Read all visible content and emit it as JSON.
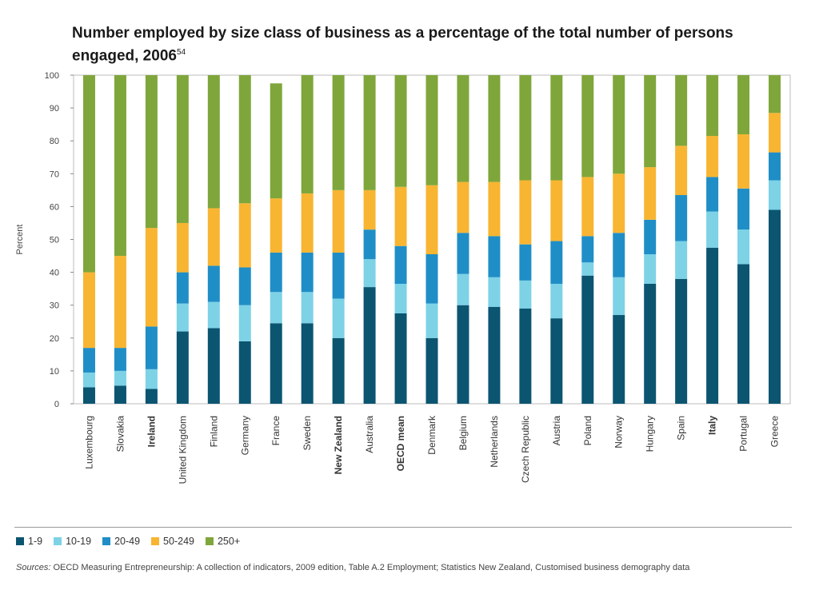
{
  "title": "Number employed by size class of business as a percentage of the total number of persons engaged, 2006",
  "title_footnote": "54",
  "sources_label": "Sources:",
  "sources_text": "OECD Measuring Entrepreneurship: A collection of indicators, 2009 edition, Table A.2 Employment; Statistics New Zealand, Customised business demography data",
  "colors": {
    "1-9": "#0b5571",
    "10-19": "#7dd2e6",
    "20-49": "#1f8ec6",
    "50-249": "#f8b532",
    "250+": "#7fa63a"
  },
  "chart_data": {
    "type": "bar",
    "stacked": true,
    "ylabel": "Percent",
    "ylim": [
      0,
      100
    ],
    "yticks": [
      0,
      10,
      20,
      30,
      40,
      50,
      60,
      70,
      80,
      90,
      100
    ],
    "categories": [
      "Luxembourg",
      "Slovakia",
      "Ireland",
      "United Kingdom",
      "Finland",
      "Germany",
      "France",
      "Sweden",
      "New Zealand",
      "Australia",
      "OECD mean",
      "Denmark",
      "Belgium",
      "Netherlands",
      "Czech Republic",
      "Austria",
      "Poland",
      "Norway",
      "Hungary",
      "Spain",
      "Italy",
      "Portugal",
      "Greece"
    ],
    "bold_categories": [
      "Ireland",
      "New Zealand",
      "OECD mean",
      "Italy"
    ],
    "series": [
      {
        "name": "1-9",
        "values": [
          5,
          5.5,
          4.5,
          22,
          23,
          19,
          24.5,
          24.5,
          20,
          35.5,
          27.5,
          20,
          30,
          29.5,
          29,
          26,
          39,
          27,
          36.5,
          38,
          47.5,
          42.5,
          59
        ]
      },
      {
        "name": "10-19",
        "values": [
          4.5,
          4.5,
          6,
          8.5,
          8,
          11,
          9.5,
          9.5,
          12,
          8.5,
          9,
          10.5,
          9.5,
          9,
          8.5,
          10.5,
          4,
          11.5,
          9,
          11.5,
          11,
          10.5,
          9
        ]
      },
      {
        "name": "20-49",
        "values": [
          7.5,
          7,
          13,
          9.5,
          11,
          11.5,
          12,
          12,
          14,
          9,
          11.5,
          15,
          12.5,
          12.5,
          11,
          13,
          8,
          13.5,
          10.5,
          14,
          10.5,
          12.5,
          8.5
        ]
      },
      {
        "name": "50-249",
        "values": [
          23,
          28,
          30,
          15,
          17.5,
          19.5,
          16.5,
          18,
          19,
          12,
          18,
          21,
          15.5,
          16.5,
          19.5,
          18.5,
          18,
          18,
          16,
          15,
          12.5,
          16.5,
          12
        ]
      },
      {
        "name": "250+",
        "values": [
          60,
          55,
          46.5,
          45,
          40.5,
          39,
          35,
          36,
          35,
          35,
          34,
          33.5,
          32.5,
          32.5,
          32,
          32,
          31,
          30,
          28,
          21.5,
          18.5,
          18,
          11.5
        ]
      }
    ]
  }
}
